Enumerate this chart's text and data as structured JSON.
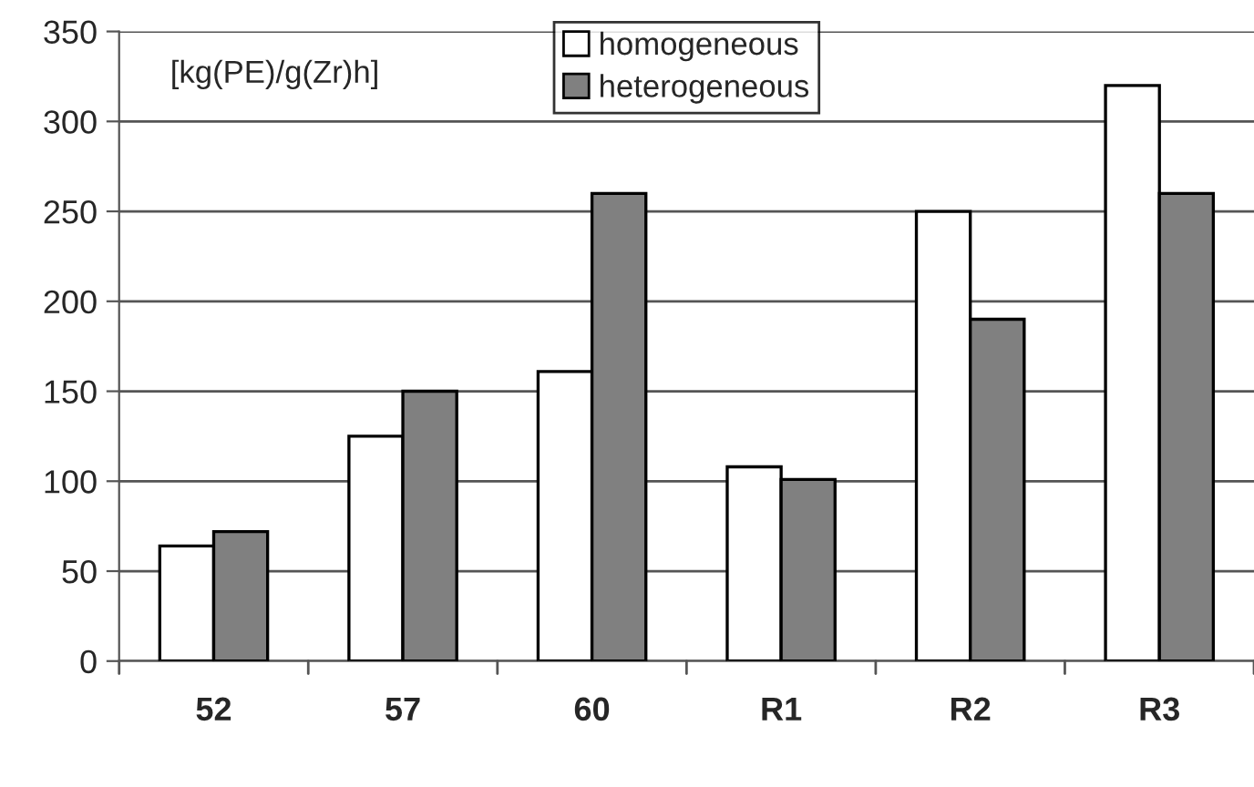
{
  "chart_data": {
    "type": "bar",
    "ylabel": "[kg(PE)/g(Zr)h]",
    "categories": [
      "52",
      "57",
      "60",
      "R1",
      "R2",
      "R3"
    ],
    "series": [
      {
        "name": "homogeneous",
        "color": "#ffffff",
        "values": [
          64,
          125,
          161,
          108,
          250,
          320
        ]
      },
      {
        "name": "heterogeneous",
        "color": "#808080",
        "values": [
          72,
          150,
          260,
          101,
          190,
          260
        ]
      }
    ],
    "ylim": [
      0,
      350
    ],
    "yticks": [
      0,
      50,
      100,
      150,
      200,
      250,
      300,
      350
    ],
    "grid": "y",
    "legend": "top"
  }
}
